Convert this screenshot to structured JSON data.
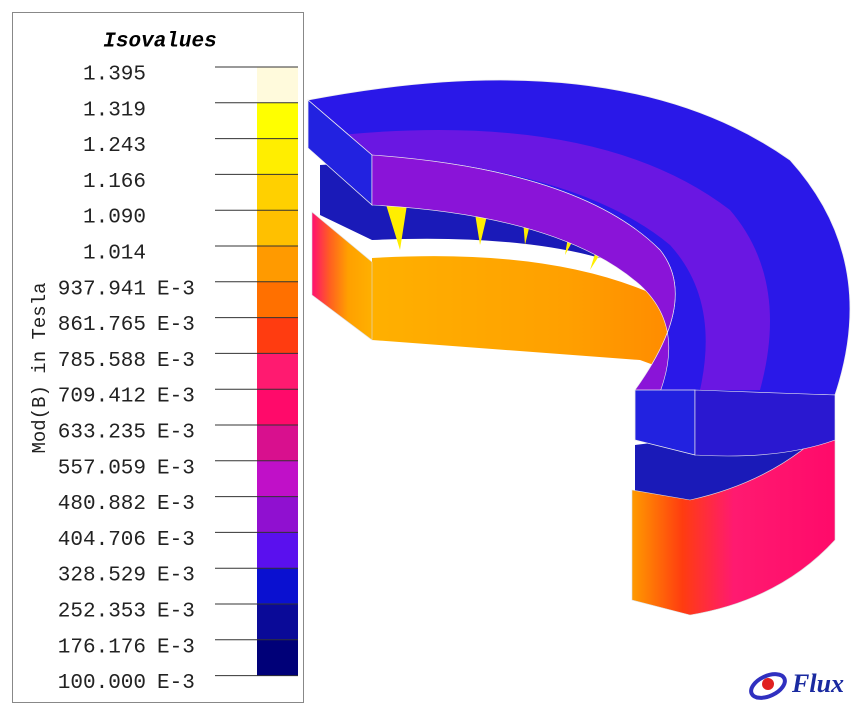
{
  "legend": {
    "title": "Isovalues",
    "quantity": "Mod(B) in Tesla",
    "levels": [
      {
        "value": "1.395"
      },
      {
        "value": "1.319"
      },
      {
        "value": "1.243"
      },
      {
        "value": "1.166"
      },
      {
        "value": "1.090"
      },
      {
        "value": "1.014"
      },
      {
        "value": "937.941",
        "unit": "E-3"
      },
      {
        "value": "861.765",
        "unit": "E-3"
      },
      {
        "value": "785.588",
        "unit": "E-3"
      },
      {
        "value": "709.412",
        "unit": "E-3"
      },
      {
        "value": "633.235",
        "unit": "E-3"
      },
      {
        "value": "557.059",
        "unit": "E-3"
      },
      {
        "value": "480.882",
        "unit": "E-3"
      },
      {
        "value": "404.706",
        "unit": "E-3"
      },
      {
        "value": "328.529",
        "unit": "E-3"
      },
      {
        "value": "252.353",
        "unit": "E-3"
      },
      {
        "value": "176.176",
        "unit": "E-3"
      },
      {
        "value": "100.000",
        "unit": "E-3"
      }
    ],
    "colors": [
      "#fffadc",
      "#ffff00",
      "#ffee00",
      "#ffd000",
      "#ffc000",
      "#ff9a00",
      "#ff7000",
      "#ff3c10",
      "#ff1a70",
      "#ff0a6a",
      "#d8108e",
      "#c010c8",
      "#9010d0",
      "#5a10ee",
      "#0a10d0",
      "#0a0a98",
      "#000078"
    ]
  },
  "logo": {
    "text": "Flux"
  }
}
